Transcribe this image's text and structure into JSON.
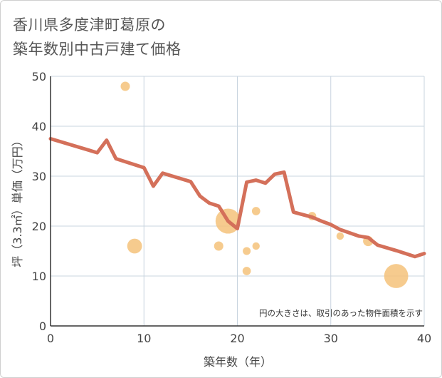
{
  "chart_data": {
    "type": "scatter+line",
    "title_lines": [
      "香川県多度津町葛原の",
      "築年数別中古戸建て価格"
    ],
    "xlabel": "築年数（年）",
    "ylabel": "坪（3.3㎡）単価（万円）",
    "xlim": [
      0,
      40
    ],
    "ylim": [
      0,
      50
    ],
    "x_ticks": [
      0,
      10,
      20,
      30,
      40
    ],
    "y_ticks": [
      0,
      10,
      20,
      30,
      40,
      50
    ],
    "note": "円の大きさは、取引のあった物件面積を示す",
    "colors": {
      "line": "#d4705a",
      "bubble": "#f5c27a",
      "grid": "#c8d4df",
      "axis": "#333333"
    },
    "series": [
      {
        "name": "scatter",
        "points": [
          {
            "x": 8,
            "y": 48,
            "size": 1.0
          },
          {
            "x": 9,
            "y": 16,
            "size": 1.6
          },
          {
            "x": 18,
            "y": 16,
            "size": 1.0
          },
          {
            "x": 19,
            "y": 21,
            "size": 2.7
          },
          {
            "x": 21,
            "y": 15,
            "size": 0.85
          },
          {
            "x": 21,
            "y": 11,
            "size": 0.9
          },
          {
            "x": 22,
            "y": 23,
            "size": 0.9
          },
          {
            "x": 22,
            "y": 16,
            "size": 0.8
          },
          {
            "x": 28,
            "y": 22,
            "size": 0.9
          },
          {
            "x": 31,
            "y": 18,
            "size": 0.8
          },
          {
            "x": 34,
            "y": 17,
            "size": 1.1
          },
          {
            "x": 37,
            "y": 10,
            "size": 2.6
          }
        ]
      },
      {
        "name": "trend",
        "points": [
          {
            "x": 0,
            "y": 37.5
          },
          {
            "x": 5,
            "y": 34.7
          },
          {
            "x": 6,
            "y": 37.2
          },
          {
            "x": 7,
            "y": 33.5
          },
          {
            "x": 10,
            "y": 31.7
          },
          {
            "x": 11,
            "y": 28.0
          },
          {
            "x": 12,
            "y": 30.6
          },
          {
            "x": 15,
            "y": 28.9
          },
          {
            "x": 16,
            "y": 26.0
          },
          {
            "x": 17,
            "y": 24.6
          },
          {
            "x": 18,
            "y": 24.0
          },
          {
            "x": 19,
            "y": 21.0
          },
          {
            "x": 20,
            "y": 19.5
          },
          {
            "x": 21,
            "y": 28.8
          },
          {
            "x": 22,
            "y": 29.2
          },
          {
            "x": 23,
            "y": 28.6
          },
          {
            "x": 24,
            "y": 30.4
          },
          {
            "x": 25,
            "y": 30.8
          },
          {
            "x": 26,
            "y": 22.8
          },
          {
            "x": 28,
            "y": 21.8
          },
          {
            "x": 29,
            "y": 21.0
          },
          {
            "x": 30,
            "y": 20.3
          },
          {
            "x": 31,
            "y": 19.3
          },
          {
            "x": 33,
            "y": 18.0
          },
          {
            "x": 34,
            "y": 17.7
          },
          {
            "x": 35,
            "y": 16.2
          },
          {
            "x": 37,
            "y": 15.1
          },
          {
            "x": 39,
            "y": 13.9
          },
          {
            "x": 40,
            "y": 14.5
          }
        ]
      }
    ]
  }
}
